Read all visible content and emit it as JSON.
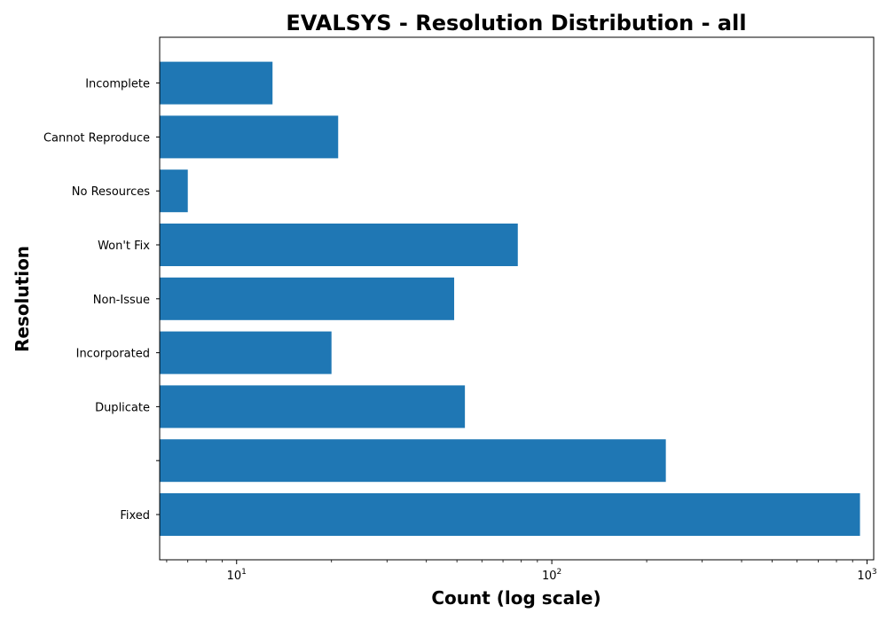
{
  "chart_data": {
    "type": "bar",
    "orientation": "horizontal",
    "title": "EVALSYS - Resolution Distribution - all",
    "xlabel": "Count (log scale)",
    "ylabel": "Resolution",
    "x_scale": "log",
    "xlim": [
      5.7,
      1050
    ],
    "x_ticks": [
      {
        "value": 10,
        "base": "10",
        "exp": "1"
      },
      {
        "value": 100,
        "base": "10",
        "exp": "2"
      },
      {
        "value": 1000,
        "base": "10",
        "exp": "3"
      }
    ],
    "categories": [
      "Fixed",
      "",
      "Duplicate",
      "Incorporated",
      "Non-Issue",
      "Won't Fix",
      "No Resources",
      "Cannot Reproduce",
      "Incomplete"
    ],
    "values": [
      950,
      230,
      53,
      20,
      49,
      78,
      7,
      21,
      13
    ],
    "color": "#1f77b4",
    "grid": false
  }
}
